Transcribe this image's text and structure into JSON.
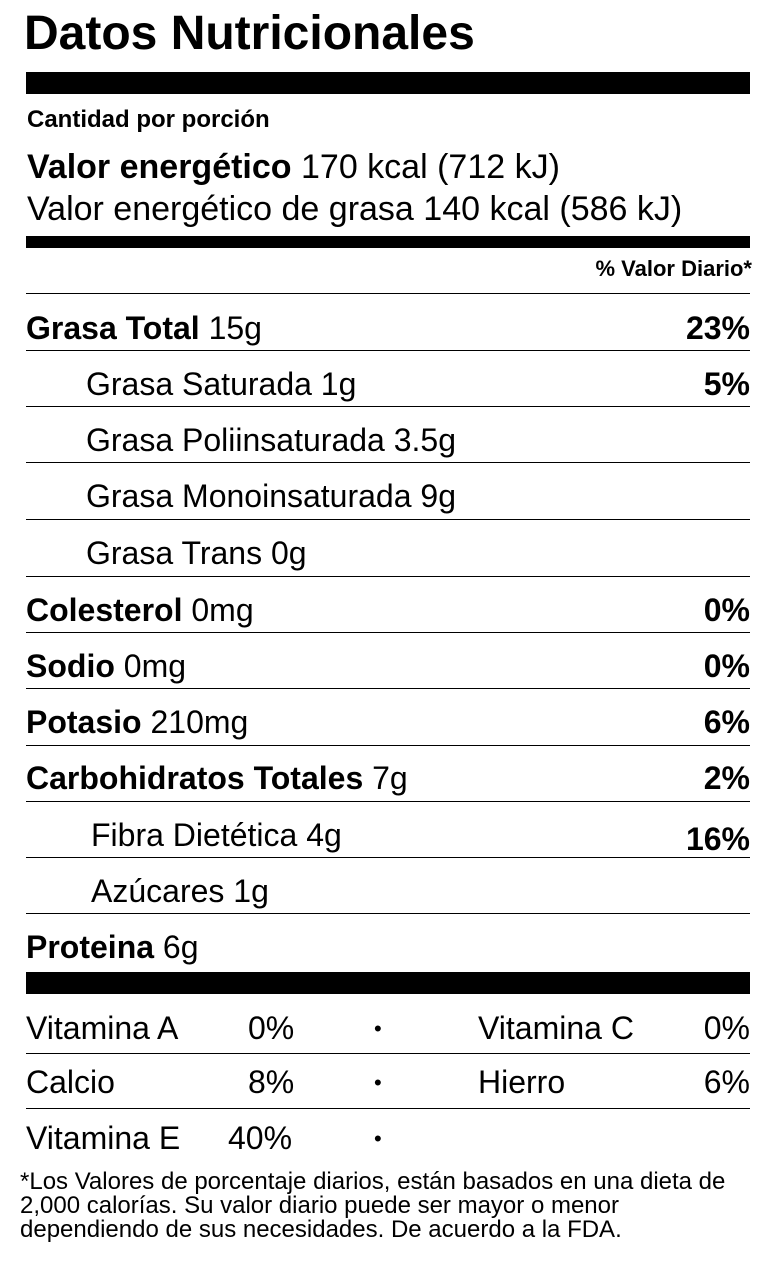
{
  "title": "Datos Nutricionales",
  "serving_label": "Cantidad por porción",
  "energy": {
    "label": "Valor energético",
    "value": "170 kcal (712 kJ)",
    "fat_label": "Valor energético de grasa",
    "fat_value": "140 kcal (586 kJ)"
  },
  "dv_header": "% Valor Diario*",
  "nutrients": [
    {
      "name": "Grasa Total",
      "amount": "15g",
      "dv": "23%"
    },
    {
      "name": "Grasa Saturada",
      "amount": "1g",
      "dv": "5%"
    },
    {
      "name": "Grasa Poliinsaturada",
      "amount": "3.5g",
      "dv": ""
    },
    {
      "name": "Grasa Monoinsaturada",
      "amount": "9g",
      "dv": ""
    },
    {
      "name": "Grasa Trans",
      "amount": "0g",
      "dv": ""
    },
    {
      "name": "Colesterol",
      "amount": "0mg",
      "dv": "0%"
    },
    {
      "name": "Sodio",
      "amount": "0mg",
      "dv": "0%"
    },
    {
      "name": "Potasio",
      "amount": "210mg",
      "dv": "6%"
    },
    {
      "name": "Carbohidratos Totales",
      "amount": "7g",
      "dv": "2%"
    },
    {
      "name": "Fibra Dietética",
      "amount": "4g",
      "dv": "16%"
    },
    {
      "name": "Azúcares",
      "amount": "1g",
      "dv": ""
    },
    {
      "name": "Proteina",
      "amount": "6g",
      "dv": ""
    }
  ],
  "vitamins": [
    {
      "left_name": "Vitamina A",
      "left_pct": "0%",
      "bullet": "•",
      "right_name": "Vitamina C",
      "right_pct": "0%"
    },
    {
      "left_name": "Calcio",
      "left_pct": "8%",
      "bullet": "•",
      "right_name": "Hierro",
      "right_pct": "6%"
    },
    {
      "left_name": "Vitamina E",
      "left_pct": "40%",
      "bullet": "•",
      "right_name": "",
      "right_pct": ""
    }
  ],
  "footnote": "*Los Valores de porcentaje diarios, están basados en una dieta de 2,000 calorías.  Su valor diario puede ser mayor o menor dependiendo de sus necesidades.  De acuerdo a la FDA."
}
